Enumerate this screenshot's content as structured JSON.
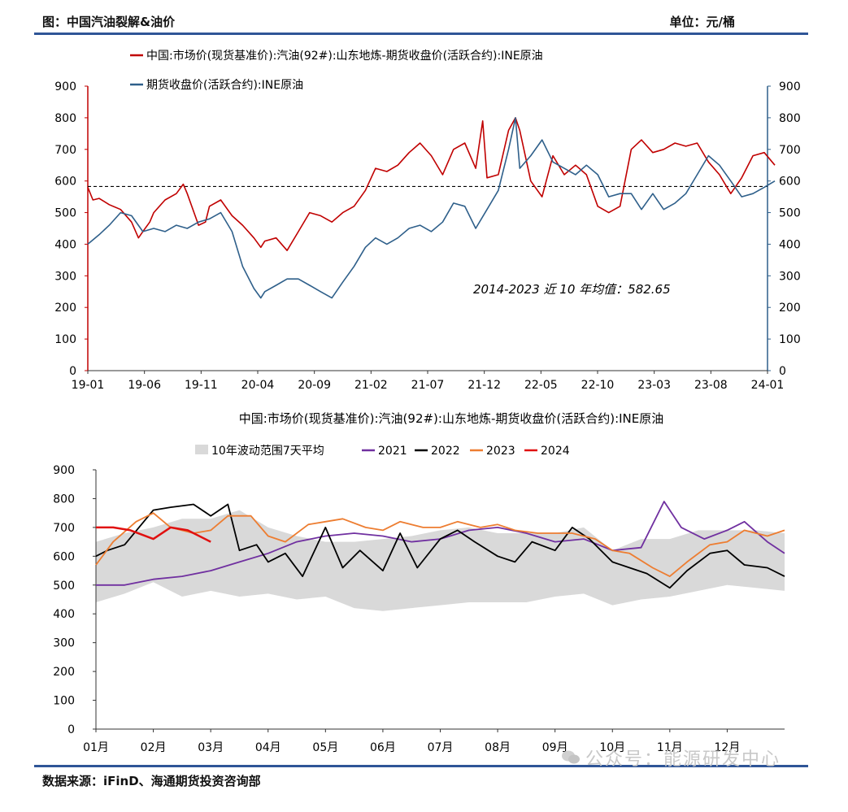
{
  "header": {
    "title": "图：中国汽油裂解&油价",
    "unit": "单位：元/桶"
  },
  "source": "数据来源：iFinD、海通期货投资咨询部",
  "watermark": "公众号：能源研发中心",
  "watermark_icon": "wechat-icon",
  "colors": {
    "rule": "#2f5597",
    "red": "#c00000",
    "blue": "#2e5f8a",
    "purple": "#7030a0",
    "black": "#000000",
    "orange": "#ed7d31",
    "bright_red": "#e01010",
    "band": "#d9d9d9"
  },
  "chart_data": [
    {
      "type": "line",
      "legend": [
        "中国:市场价(现货基准价):汽油(92#):山东地炼-期货收盘价(活跃合约):INE原油",
        "期货收盘价(活跃合约):INE原油"
      ],
      "x_ticks": [
        "19-01",
        "19-06",
        "19-11",
        "20-04",
        "20-09",
        "21-02",
        "21-07",
        "21-12",
        "22-05",
        "22-10",
        "23-03",
        "23-08",
        "24-01"
      ],
      "y_left_ticks": [
        "0",
        "100",
        "200",
        "300",
        "400",
        "500",
        "600",
        "700",
        "800",
        "900"
      ],
      "y_right_ticks": [
        "0",
        "100",
        "200",
        "300",
        "400",
        "500",
        "600",
        "700",
        "800",
        "900"
      ],
      "ylim": [
        0,
        900
      ],
      "mean_line": 582.65,
      "annotation": "2014-2023 近 10 年均值：582.65",
      "series": [
        {
          "name": "中国:市场价(现货基准价):汽油(92#):山东地炼-期货收盘价(活跃合约):INE原油",
          "axis": "left",
          "points": [
            [
              "2019-01",
              580
            ],
            [
              "2019-01-15",
              540
            ],
            [
              "2019-02",
              545
            ],
            [
              "2019-03",
              525
            ],
            [
              "2019-04",
              510
            ],
            [
              "2019-05",
              470
            ],
            [
              "2019-05-20",
              420
            ],
            [
              "2019-06",
              440
            ],
            [
              "2019-06-20",
              470
            ],
            [
              "2019-07",
              500
            ],
            [
              "2019-08",
              540
            ],
            [
              "2019-09",
              560
            ],
            [
              "2019-09-20",
              590
            ],
            [
              "2019-10",
              560
            ],
            [
              "2019-11",
              460
            ],
            [
              "2019-11-20",
              470
            ],
            [
              "2019-12",
              520
            ],
            [
              "2020-01",
              540
            ],
            [
              "2020-02",
              490
            ],
            [
              "2020-03",
              460
            ],
            [
              "2020-04",
              420
            ],
            [
              "2020-04-20",
              390
            ],
            [
              "2020-05",
              410
            ],
            [
              "2020-06",
              420
            ],
            [
              "2020-07",
              380
            ],
            [
              "2020-08",
              440
            ],
            [
              "2020-09",
              500
            ],
            [
              "2020-10",
              490
            ],
            [
              "2020-11",
              470
            ],
            [
              "2020-12",
              500
            ],
            [
              "2021-01",
              520
            ],
            [
              "2021-02",
              570
            ],
            [
              "2021-03",
              640
            ],
            [
              "2021-04",
              630
            ],
            [
              "2021-05",
              650
            ],
            [
              "2021-06",
              690
            ],
            [
              "2021-07",
              720
            ],
            [
              "2021-08",
              680
            ],
            [
              "2021-09",
              620
            ],
            [
              "2021-10",
              700
            ],
            [
              "2021-11",
              720
            ],
            [
              "2021-12",
              640
            ],
            [
              "2021-12-20",
              790
            ],
            [
              "2022-01",
              610
            ],
            [
              "2022-02",
              620
            ],
            [
              "2022-03",
              760
            ],
            [
              "2022-03-20",
              800
            ],
            [
              "2022-04",
              760
            ],
            [
              "2022-05",
              600
            ],
            [
              "2022-06",
              550
            ],
            [
              "2022-07",
              680
            ],
            [
              "2022-08",
              620
            ],
            [
              "2022-09",
              650
            ],
            [
              "2022-10",
              620
            ],
            [
              "2022-11",
              520
            ],
            [
              "2022-12",
              500
            ],
            [
              "2023-01",
              520
            ],
            [
              "2023-02",
              700
            ],
            [
              "2023-03",
              730
            ],
            [
              "2023-04",
              690
            ],
            [
              "2023-05",
              700
            ],
            [
              "2023-06",
              720
            ],
            [
              "2023-07",
              710
            ],
            [
              "2023-08",
              720
            ],
            [
              "2023-09",
              660
            ],
            [
              "2023-10",
              620
            ],
            [
              "2023-11",
              560
            ],
            [
              "2023-12",
              610
            ],
            [
              "2024-01",
              680
            ],
            [
              "2024-02",
              690
            ],
            [
              "2024-03",
              650
            ]
          ]
        },
        {
          "name": "期货收盘价(活跃合约):INE原油",
          "axis": "right",
          "points": [
            [
              "2019-01",
              400
            ],
            [
              "2019-02",
              430
            ],
            [
              "2019-03",
              460
            ],
            [
              "2019-04",
              500
            ],
            [
              "2019-05",
              490
            ],
            [
              "2019-06",
              440
            ],
            [
              "2019-07",
              450
            ],
            [
              "2019-08",
              440
            ],
            [
              "2019-09",
              460
            ],
            [
              "2019-10",
              450
            ],
            [
              "2019-11",
              470
            ],
            [
              "2019-12",
              480
            ],
            [
              "2020-01",
              500
            ],
            [
              "2020-02",
              440
            ],
            [
              "2020-03",
              330
            ],
            [
              "2020-04",
              260
            ],
            [
              "2020-04-20",
              230
            ],
            [
              "2020-05",
              250
            ],
            [
              "2020-06",
              270
            ],
            [
              "2020-07",
              290
            ],
            [
              "2020-08",
              290
            ],
            [
              "2020-09",
              270
            ],
            [
              "2020-10",
              250
            ],
            [
              "2020-11",
              230
            ],
            [
              "2020-12",
              280
            ],
            [
              "2021-01",
              330
            ],
            [
              "2021-02",
              390
            ],
            [
              "2021-03",
              420
            ],
            [
              "2021-04",
              400
            ],
            [
              "2021-05",
              420
            ],
            [
              "2021-06",
              450
            ],
            [
              "2021-07",
              460
            ],
            [
              "2021-08",
              440
            ],
            [
              "2021-09",
              470
            ],
            [
              "2021-10",
              530
            ],
            [
              "2021-11",
              520
            ],
            [
              "2021-12",
              450
            ],
            [
              "2022-01",
              510
            ],
            [
              "2022-02",
              570
            ],
            [
              "2022-03",
              700
            ],
            [
              "2022-03-20",
              800
            ],
            [
              "2022-04",
              640
            ],
            [
              "2022-05",
              680
            ],
            [
              "2022-06",
              730
            ],
            [
              "2022-07",
              660
            ],
            [
              "2022-08",
              640
            ],
            [
              "2022-09",
              620
            ],
            [
              "2022-10",
              650
            ],
            [
              "2022-11",
              620
            ],
            [
              "2022-12",
              550
            ],
            [
              "2023-01",
              560
            ],
            [
              "2023-02",
              560
            ],
            [
              "2023-03",
              510
            ],
            [
              "2023-04",
              560
            ],
            [
              "2023-05",
              510
            ],
            [
              "2023-06",
              530
            ],
            [
              "2023-07",
              560
            ],
            [
              "2023-08",
              620
            ],
            [
              "2023-09",
              680
            ],
            [
              "2023-10",
              650
            ],
            [
              "2023-11",
              600
            ],
            [
              "2023-12",
              550
            ],
            [
              "2024-01",
              560
            ],
            [
              "2024-02",
              580
            ],
            [
              "2024-03",
              600
            ]
          ]
        }
      ]
    },
    {
      "type": "line",
      "title": "中国:市场价(现货基准价):汽油(92#):山东地炼-期货收盘价(活跃合约):INE原油",
      "legend": [
        "10年波动范围7天平均",
        "2021",
        "2022",
        "2023",
        "2024"
      ],
      "x_ticks": [
        "01月",
        "02月",
        "03月",
        "04月",
        "05月",
        "06月",
        "07月",
        "08月",
        "09月",
        "10月",
        "11月",
        "12月"
      ],
      "y_ticks": [
        "0",
        "100",
        "200",
        "300",
        "400",
        "500",
        "600",
        "700",
        "800",
        "900"
      ],
      "ylim": [
        0,
        900
      ],
      "band": {
        "name": "10年波动范围7天平均",
        "months": [
          1,
          1.5,
          2,
          2.5,
          3,
          3.5,
          4,
          4.5,
          5,
          5.5,
          6,
          6.5,
          7,
          7.5,
          8,
          8.5,
          9,
          9.5,
          10,
          10.5,
          11,
          11.5,
          12,
          12.5,
          13
        ],
        "low": [
          440,
          470,
          510,
          460,
          480,
          460,
          470,
          450,
          460,
          420,
          410,
          420,
          430,
          440,
          440,
          440,
          460,
          470,
          430,
          450,
          460,
          480,
          500,
          490,
          480
        ],
        "high": [
          650,
          680,
          700,
          730,
          730,
          760,
          700,
          670,
          650,
          650,
          660,
          670,
          690,
          700,
          680,
          680,
          680,
          700,
          620,
          660,
          660,
          690,
          690,
          690,
          680
        ]
      },
      "series": [
        {
          "name": "2021",
          "months": [
            1,
            1.5,
            2,
            2.5,
            3,
            3.5,
            4,
            4.5,
            5,
            5.5,
            6,
            6.5,
            7,
            7.5,
            8,
            8.5,
            9,
            9.5,
            10,
            10.5,
            10.9,
            11.2,
            11.6,
            12,
            12.3,
            12.7,
            13
          ],
          "values": [
            500,
            500,
            520,
            530,
            550,
            580,
            610,
            650,
            670,
            680,
            670,
            650,
            660,
            690,
            700,
            680,
            650,
            660,
            620,
            630,
            790,
            700,
            660,
            690,
            720,
            650,
            610
          ]
        },
        {
          "name": "2022",
          "months": [
            1,
            1.2,
            1.5,
            2,
            2.3,
            2.7,
            3,
            3.3,
            3.5,
            3.8,
            4,
            4.3,
            4.6,
            5,
            5.3,
            5.6,
            6,
            6.3,
            6.6,
            7,
            7.3,
            7.6,
            8,
            8.3,
            8.6,
            9,
            9.3,
            9.6,
            10,
            10.3,
            10.6,
            11,
            11.3,
            11.7,
            12,
            12.3,
            12.7,
            13
          ],
          "values": [
            600,
            620,
            640,
            760,
            770,
            780,
            740,
            780,
            620,
            640,
            580,
            610,
            530,
            700,
            560,
            620,
            550,
            680,
            560,
            660,
            690,
            650,
            600,
            580,
            650,
            620,
            700,
            660,
            580,
            560,
            540,
            490,
            550,
            610,
            620,
            570,
            560,
            530
          ]
        },
        {
          "name": "2023",
          "months": [
            1,
            1.3,
            1.7,
            2,
            2.3,
            2.7,
            3,
            3.3,
            3.7,
            4,
            4.3,
            4.7,
            5,
            5.3,
            5.7,
            6,
            6.3,
            6.7,
            7,
            7.3,
            7.7,
            8,
            8.3,
            8.7,
            9,
            9.3,
            9.7,
            10,
            10.3,
            10.7,
            11,
            11.3,
            11.7,
            12,
            12.3,
            12.7,
            13
          ],
          "values": [
            570,
            650,
            720,
            750,
            700,
            680,
            690,
            740,
            740,
            670,
            650,
            710,
            720,
            730,
            700,
            690,
            720,
            700,
            700,
            720,
            700,
            710,
            690,
            680,
            680,
            680,
            660,
            620,
            610,
            560,
            530,
            580,
            640,
            650,
            690,
            670,
            690
          ]
        },
        {
          "name": "2024",
          "months": [
            1,
            1.3,
            1.6,
            2,
            2.3,
            2.6,
            3
          ],
          "values": [
            700,
            700,
            690,
            660,
            700,
            690,
            650
          ]
        }
      ]
    }
  ]
}
